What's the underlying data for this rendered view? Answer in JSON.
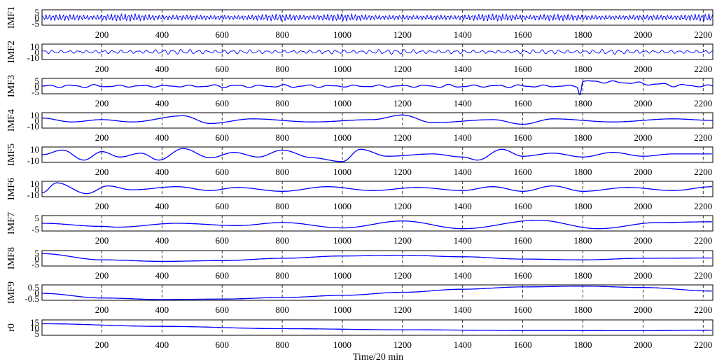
{
  "chart_data": {
    "type": "line",
    "xlabel": "Time/20 min",
    "xlim": [
      1,
      2232
    ],
    "x_ticks": [
      200,
      400,
      600,
      800,
      1000,
      1200,
      1400,
      1600,
      1800,
      2000,
      2200
    ],
    "grid": "vertical-dashed",
    "line_color": "#0000ff",
    "panels": [
      {
        "ylabel": "IMF1",
        "ylim": [
          -5,
          5
        ],
        "yticks": [
          "5",
          "0",
          "-5"
        ],
        "profile": "high-frequency noise, amplitude ~2-3",
        "x": [
          1,
          2232
        ],
        "y": [
          0,
          0
        ]
      },
      {
        "ylabel": "IMF2",
        "ylim": [
          -10,
          10
        ],
        "yticks": [
          "10",
          "0",
          "-10"
        ],
        "profile": "high-frequency oscillation, amplitude ~2-4",
        "x": [
          1,
          2232
        ],
        "y": [
          0,
          0
        ]
      },
      {
        "ylabel": "IMF3",
        "ylim": [
          -5,
          5
        ],
        "yticks": [
          "5",
          "0",
          "-5"
        ],
        "profile": "oscillation with bursts; largest excursion near x=1790",
        "x": [
          1,
          1780,
          1790,
          1800,
          2232
        ],
        "y": [
          0,
          0,
          -5,
          3,
          0
        ]
      },
      {
        "ylabel": "IMF4",
        "ylim": [
          -10,
          10
        ],
        "yticks": [
          "10",
          "0",
          "-10"
        ],
        "x": [
          1,
          100,
          200,
          300,
          470,
          560,
          700,
          900,
          1100,
          1200,
          1300,
          1500,
          1600,
          1700,
          1900,
          2100,
          2232
        ],
        "y": [
          3,
          -2,
          1,
          -2,
          6,
          -4,
          2,
          -2,
          1,
          7,
          -3,
          1,
          -5,
          2,
          -2,
          2,
          0
        ]
      },
      {
        "ylabel": "IMF5",
        "ylim": [
          -10,
          10
        ],
        "yticks": [
          "10",
          "-10"
        ],
        "x": [
          1,
          70,
          140,
          200,
          260,
          330,
          390,
          470,
          560,
          640,
          720,
          800,
          900,
          1000,
          1060,
          1150,
          1300,
          1400,
          1450,
          1530,
          1600,
          1700,
          1800,
          1900,
          2000,
          2100,
          2232
        ],
        "y": [
          0,
          6,
          -7,
          4,
          -3,
          2,
          -7,
          8,
          -4,
          3,
          -3,
          6,
          -4,
          -9,
          7,
          -2,
          1,
          -3,
          -7,
          7,
          -2,
          2,
          -3,
          3,
          -2,
          1,
          1
        ]
      },
      {
        "ylabel": "IMF6",
        "ylim": [
          -10,
          10
        ],
        "yticks": [
          "10",
          "0",
          "-10"
        ],
        "x": [
          1,
          50,
          150,
          220,
          300,
          450,
          560,
          650,
          800,
          950,
          1100,
          1250,
          1400,
          1500,
          1600,
          1700,
          1800,
          1950,
          2100,
          2232
        ],
        "y": [
          -5,
          8,
          -6,
          4,
          -1,
          3,
          -2,
          2,
          -3,
          3,
          -2,
          2,
          -2,
          3,
          -3,
          4,
          -3,
          2,
          -2,
          3
        ]
      },
      {
        "ylabel": "IMF7",
        "ylim": [
          -5,
          5
        ],
        "yticks": [
          "5",
          "-5"
        ],
        "x": [
          1,
          200,
          250,
          450,
          650,
          800,
          1000,
          1200,
          1400,
          1650,
          1850,
          2050,
          2232
        ],
        "y": [
          0,
          -2,
          -2.5,
          0,
          -1.5,
          0.5,
          -3,
          1.5,
          -3.5,
          2,
          -3.5,
          0.5,
          1
        ]
      },
      {
        "ylabel": "IMF8",
        "ylim": [
          -5,
          5
        ],
        "yticks": [
          "5",
          "0",
          "-5"
        ],
        "x": [
          1,
          200,
          400,
          600,
          800,
          1000,
          1200,
          1400,
          1600,
          1800,
          2000,
          2232
        ],
        "y": [
          3,
          -1,
          -2,
          -1.5,
          0,
          1.5,
          2,
          1,
          -0.5,
          -1,
          0,
          0.2
        ]
      },
      {
        "ylabel": "IMF9",
        "ylim": [
          -0.5,
          0.5
        ],
        "yticks": [
          "0.5",
          "0",
          "-0.5"
        ],
        "x": [
          1,
          200,
          400,
          600,
          800,
          1000,
          1200,
          1400,
          1600,
          1800,
          2000,
          2232
        ],
        "y": [
          -0.05,
          -0.35,
          -0.45,
          -0.42,
          -0.32,
          -0.18,
          0.02,
          0.22,
          0.37,
          0.42,
          0.33,
          0.1
        ]
      },
      {
        "ylabel": "r0",
        "ylim": [
          5,
          15
        ],
        "yticks": [
          "15",
          "10",
          "5"
        ],
        "x": [
          1,
          400,
          800,
          1200,
          1600,
          2000,
          2232
        ],
        "y": [
          12.5,
          10.8,
          9.3,
          8.6,
          8.1,
          8.0,
          8.3
        ]
      }
    ]
  }
}
